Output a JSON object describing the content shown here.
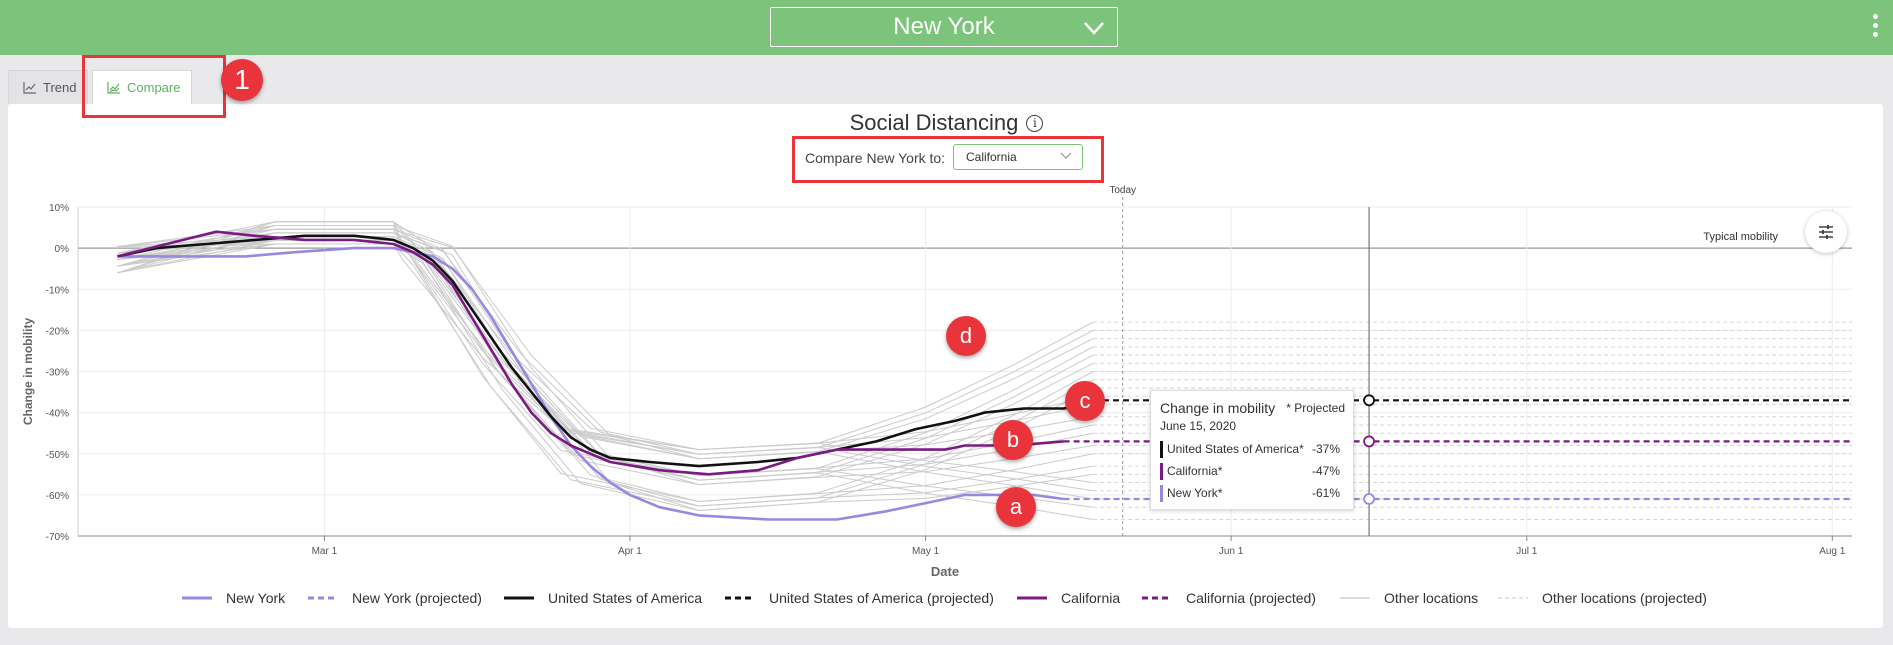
{
  "header": {
    "location": "New York"
  },
  "tabs": [
    {
      "label": "Trend"
    },
    {
      "label": "Compare"
    }
  ],
  "callouts": {
    "tabs": "1",
    "a": "a",
    "b": "b",
    "c": "c",
    "d": "d"
  },
  "main": {
    "title": "Social Distancing",
    "info_glyph": "i",
    "compare_label": "Compare New York to:",
    "compare_value": "California"
  },
  "tooltip": {
    "title": "Change in mobility",
    "projected_note": "* Projected",
    "date": "June 15, 2020",
    "rows": [
      {
        "name": "United States of America*",
        "value": "-37%",
        "color": "#111111"
      },
      {
        "name": "California*",
        "value": "-47%",
        "color": "#7b1a82"
      },
      {
        "name": "New York*",
        "value": "-61%",
        "color": "#9b86e0"
      }
    ]
  },
  "colors": {
    "new_york": "#9b86e0",
    "usa": "#111111",
    "california": "#7b1a82",
    "other": "#c8c8c8",
    "accent": "#7cc47c",
    "callout": "#e8343a"
  },
  "chart_data": {
    "type": "line",
    "xlabel": "Date",
    "ylabel": "Change in mobility",
    "x_ticks": [
      "Mar 1",
      "Apr 1",
      "May 1",
      "Jun 1",
      "Jul 1",
      "Aug 1"
    ],
    "x_range": [
      "2020-02-05",
      "2020-08-03"
    ],
    "y_ticks": [
      10,
      0,
      -10,
      -20,
      -30,
      -40,
      -50,
      -60,
      -70
    ],
    "ylim": [
      -70,
      10
    ],
    "today_label": "Today",
    "today_date": "2020-05-21",
    "hover_date": "2020-06-15",
    "typical_label": "Typical mobility",
    "grid": true,
    "series": [
      {
        "name": "New York",
        "key": "new_york",
        "points": [
          [
            "2020-02-09",
            -2
          ],
          [
            "2020-02-16",
            -2
          ],
          [
            "2020-02-22",
            -2
          ],
          [
            "2020-02-27",
            -1
          ],
          [
            "2020-03-04",
            0
          ],
          [
            "2020-03-08",
            0
          ],
          [
            "2020-03-12",
            -2
          ],
          [
            "2020-03-14",
            -5
          ],
          [
            "2020-03-16",
            -10
          ],
          [
            "2020-03-18",
            -17
          ],
          [
            "2020-03-20",
            -25
          ],
          [
            "2020-03-22",
            -33
          ],
          [
            "2020-03-24",
            -41
          ],
          [
            "2020-03-26",
            -48
          ],
          [
            "2020-03-28",
            -53
          ],
          [
            "2020-03-30",
            -57
          ],
          [
            "2020-04-01",
            -60
          ],
          [
            "2020-04-04",
            -63
          ],
          [
            "2020-04-08",
            -65
          ],
          [
            "2020-04-15",
            -66
          ],
          [
            "2020-04-22",
            -66
          ],
          [
            "2020-04-27",
            -64
          ],
          [
            "2020-05-01",
            -62
          ],
          [
            "2020-05-05",
            -60
          ],
          [
            "2020-05-12",
            -60
          ],
          [
            "2020-05-15",
            -61
          ]
        ]
      },
      {
        "name": "New York (projected)",
        "key": "new_york",
        "dashed": true,
        "points": [
          [
            "2020-05-15",
            -61
          ],
          [
            "2020-08-03",
            -61
          ]
        ]
      },
      {
        "name": "United States of America",
        "key": "usa",
        "points": [
          [
            "2020-02-09",
            -2
          ],
          [
            "2020-02-13",
            0
          ],
          [
            "2020-02-18",
            1
          ],
          [
            "2020-02-23",
            2
          ],
          [
            "2020-02-28",
            3
          ],
          [
            "2020-03-04",
            3
          ],
          [
            "2020-03-08",
            2
          ],
          [
            "2020-03-10",
            0
          ],
          [
            "2020-03-12",
            -3
          ],
          [
            "2020-03-14",
            -8
          ],
          [
            "2020-03-16",
            -15
          ],
          [
            "2020-03-18",
            -22
          ],
          [
            "2020-03-20",
            -29
          ],
          [
            "2020-03-22",
            -35
          ],
          [
            "2020-03-24",
            -41
          ],
          [
            "2020-03-26",
            -46
          ],
          [
            "2020-03-28",
            -49
          ],
          [
            "2020-03-30",
            -51
          ],
          [
            "2020-04-03",
            -52
          ],
          [
            "2020-04-08",
            -53
          ],
          [
            "2020-04-14",
            -52
          ],
          [
            "2020-04-18",
            -51
          ],
          [
            "2020-04-22",
            -49
          ],
          [
            "2020-04-26",
            -47
          ],
          [
            "2020-04-30",
            -44
          ],
          [
            "2020-05-04",
            -42
          ],
          [
            "2020-05-07",
            -40
          ],
          [
            "2020-05-11",
            -39
          ],
          [
            "2020-05-15",
            -39
          ],
          [
            "2020-05-17",
            -38
          ],
          [
            "2020-05-19",
            -37
          ]
        ]
      },
      {
        "name": "United States of America (projected)",
        "key": "usa",
        "dashed": true,
        "points": [
          [
            "2020-05-19",
            -37
          ],
          [
            "2020-08-03",
            -37
          ]
        ]
      },
      {
        "name": "California",
        "key": "california",
        "points": [
          [
            "2020-02-09",
            -2
          ],
          [
            "2020-02-14",
            1
          ],
          [
            "2020-02-19",
            4
          ],
          [
            "2020-02-23",
            3
          ],
          [
            "2020-02-28",
            2
          ],
          [
            "2020-03-04",
            2
          ],
          [
            "2020-03-08",
            1
          ],
          [
            "2020-03-10",
            -1
          ],
          [
            "2020-03-12",
            -4
          ],
          [
            "2020-03-14",
            -9
          ],
          [
            "2020-03-16",
            -17
          ],
          [
            "2020-03-18",
            -25
          ],
          [
            "2020-03-20",
            -33
          ],
          [
            "2020-03-22",
            -40
          ],
          [
            "2020-03-24",
            -45
          ],
          [
            "2020-03-26",
            -48
          ],
          [
            "2020-03-28",
            -50
          ],
          [
            "2020-03-30",
            -52
          ],
          [
            "2020-04-04",
            -54
          ],
          [
            "2020-04-09",
            -55
          ],
          [
            "2020-04-14",
            -54
          ],
          [
            "2020-04-18",
            -51
          ],
          [
            "2020-04-22",
            -49
          ],
          [
            "2020-04-28",
            -49
          ],
          [
            "2020-05-03",
            -49
          ],
          [
            "2020-05-05",
            -48
          ],
          [
            "2020-05-10",
            -48
          ],
          [
            "2020-05-15",
            -47
          ]
        ]
      },
      {
        "name": "California (projected)",
        "key": "california",
        "dashed": true,
        "points": [
          [
            "2020-05-15",
            -47
          ],
          [
            "2020-08-03",
            -47
          ]
        ]
      },
      {
        "name": "Other locations",
        "key": "other"
      },
      {
        "name": "Other locations (projected)",
        "key": "other",
        "dashed": true
      }
    ]
  }
}
